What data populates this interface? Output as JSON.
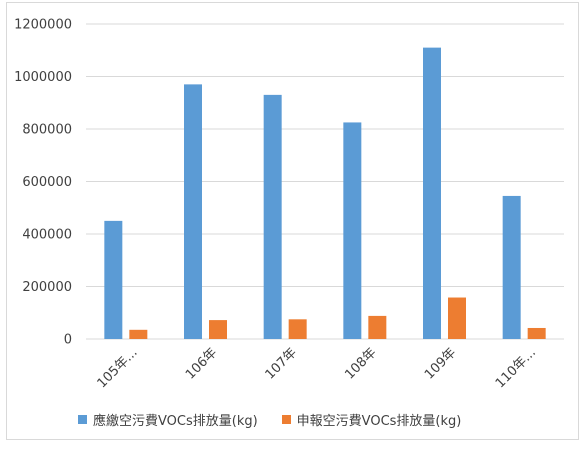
{
  "chart_data": {
    "type": "bar",
    "categories": [
      "105年...",
      "106年",
      "107年",
      "108年",
      "109年",
      "110年..."
    ],
    "series": [
      {
        "name": "應繳空污費VOCs排放量(kg)",
        "color": "#5b9bd5",
        "values": [
          450000,
          970000,
          930000,
          825000,
          1110000,
          545000
        ]
      },
      {
        "name": "申報空污費VOCs排放量(kg)",
        "color": "#ed7d31",
        "values": [
          35000,
          72000,
          75000,
          88000,
          158000,
          42000
        ]
      }
    ],
    "y_ticks": [
      "0",
      "200000",
      "400000",
      "600000",
      "800000",
      "1000000",
      "1200000"
    ],
    "ylim": [
      0,
      1200000
    ],
    "grid": true,
    "legend_position": "bottom"
  }
}
